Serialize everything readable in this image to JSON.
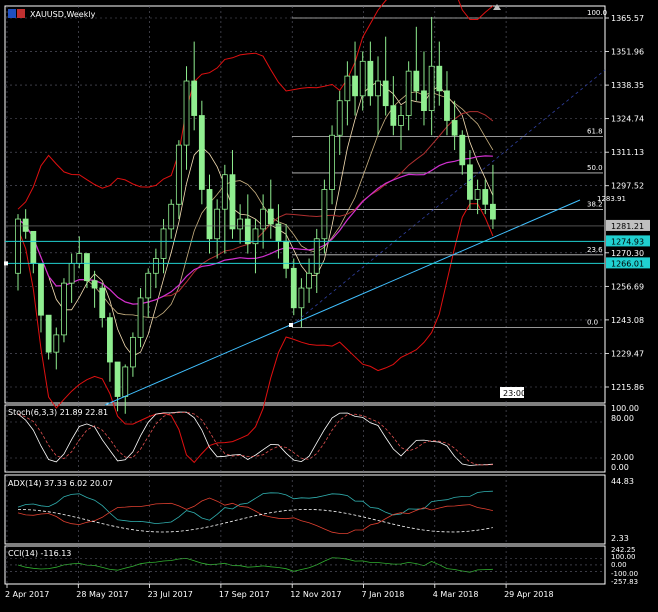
{
  "window": {
    "title": "XAUUSD,Weekly",
    "icon_name": "chart-window-icon"
  },
  "colors": {
    "background": "#000000",
    "text": "#ffffff",
    "grid": "#606070",
    "bull": "#90ee90",
    "bear": "#90ee90",
    "ma_fast": "#f5deb3",
    "ma_slow": "#b03030",
    "ma_magenta": "#d030d0",
    "bollinger": "#e01010",
    "fib": "#c8c8c8",
    "trend": "#40c0ff",
    "stoch_main": "#ffffff",
    "stoch_signal": "#e05050",
    "adx_main": "#ffffff",
    "adx_plus": "#30b0b0",
    "adx_minus": "#e04030",
    "cci": "#30b030",
    "hline_cyan": "#20d0d0"
  },
  "main": {
    "price_axis": [
      "1365.57",
      "1351.96",
      "1338.35",
      "1324.74",
      "1311.13",
      "1297.52",
      "1270.30",
      "1256.69",
      "1243.08",
      "1229.47",
      "1215.86"
    ],
    "price_tags": [
      {
        "label": "1281.21",
        "kind": "bid"
      },
      {
        "label": "1274.93",
        "kind": "line"
      },
      {
        "label": "1266.01",
        "kind": "line"
      }
    ],
    "partial_label": "1283.91",
    "fib_levels": [
      {
        "label": "100.0",
        "price": 1365.57
      },
      {
        "label": "61.8",
        "price": 1317.5
      },
      {
        "label": "50.0",
        "price": 1302.7
      },
      {
        "label": "38.2",
        "price": 1287.9
      },
      {
        "label": "23.6",
        "price": 1269.5
      },
      {
        "label": "0.0",
        "price": 1240.0
      }
    ],
    "time_label": "23:00"
  },
  "indicators": {
    "stoch": {
      "header": "Stoch(6,3,3) 21.89 22.81",
      "axis": [
        "100.00",
        "80.00",
        "20.00",
        "0.00"
      ]
    },
    "adx": {
      "header": "ADX(14) 37.33 6.02 20.07",
      "axis": [
        "44.83",
        "2.33"
      ]
    },
    "cci": {
      "header": "CCI(14) -116.13",
      "axis": [
        "242.25",
        "100.00",
        "0.00",
        "-100.00",
        "-257.83"
      ]
    }
  },
  "time_axis": [
    "2 Apr 2017",
    "28 May 2017",
    "23 Jul 2017",
    "17 Sep 2017",
    "12 Nov 2017",
    "7 Jan 2018",
    "4 Mar 2018",
    "29 Apr 2018"
  ],
  "chart_data": {
    "type": "candlestick",
    "title": "XAUUSD,Weekly",
    "ylim": [
      1205,
      1372
    ],
    "candles": [
      [
        1262,
        1286,
        1255,
        1284
      ],
      [
        1284,
        1288,
        1276,
        1279
      ],
      [
        1279,
        1279,
        1262,
        1266
      ],
      [
        1266,
        1266,
        1238,
        1245
      ],
      [
        1245,
        1245,
        1227,
        1230
      ],
      [
        1230,
        1240,
        1223,
        1237
      ],
      [
        1237,
        1260,
        1234,
        1258
      ],
      [
        1258,
        1270,
        1250,
        1266
      ],
      [
        1266,
        1277,
        1264,
        1270
      ],
      [
        1270,
        1270,
        1256,
        1259
      ],
      [
        1259,
        1263,
        1248,
        1256
      ],
      [
        1256,
        1258,
        1240,
        1244
      ],
      [
        1244,
        1246,
        1218,
        1226
      ],
      [
        1226,
        1226,
        1206,
        1212
      ],
      [
        1212,
        1225,
        1205,
        1224
      ],
      [
        1224,
        1238,
        1220,
        1236
      ],
      [
        1236,
        1256,
        1232,
        1252
      ],
      [
        1252,
        1264,
        1244,
        1262
      ],
      [
        1262,
        1272,
        1256,
        1268
      ],
      [
        1268,
        1284,
        1262,
        1280
      ],
      [
        1280,
        1292,
        1276,
        1290
      ],
      [
        1290,
        1316,
        1284,
        1314
      ],
      [
        1314,
        1346,
        1304,
        1340
      ],
      [
        1340,
        1356,
        1320,
        1326
      ],
      [
        1326,
        1332,
        1290,
        1296
      ],
      [
        1296,
        1302,
        1270,
        1276
      ],
      [
        1276,
        1292,
        1268,
        1288
      ],
      [
        1288,
        1306,
        1270,
        1302
      ],
      [
        1302,
        1312,
        1276,
        1280
      ],
      [
        1280,
        1290,
        1274,
        1284
      ],
      [
        1284,
        1294,
        1270,
        1274
      ],
      [
        1274,
        1284,
        1262,
        1280
      ],
      [
        1280,
        1294,
        1272,
        1288
      ],
      [
        1288,
        1300,
        1276,
        1282
      ],
      [
        1282,
        1290,
        1268,
        1275
      ],
      [
        1275,
        1282,
        1260,
        1264
      ],
      [
        1264,
        1268,
        1245,
        1248
      ],
      [
        1248,
        1260,
        1240,
        1256
      ],
      [
        1256,
        1268,
        1250,
        1262
      ],
      [
        1262,
        1280,
        1254,
        1276
      ],
      [
        1276,
        1300,
        1270,
        1296
      ],
      [
        1296,
        1322,
        1290,
        1318
      ],
      [
        1318,
        1336,
        1310,
        1332
      ],
      [
        1332,
        1348,
        1322,
        1342
      ],
      [
        1342,
        1356,
        1326,
        1334
      ],
      [
        1334,
        1352,
        1328,
        1348
      ],
      [
        1348,
        1356,
        1330,
        1334
      ],
      [
        1334,
        1350,
        1318,
        1340
      ],
      [
        1340,
        1358,
        1326,
        1330
      ],
      [
        1330,
        1342,
        1318,
        1322
      ],
      [
        1322,
        1330,
        1312,
        1326
      ],
      [
        1326,
        1348,
        1320,
        1344
      ],
      [
        1344,
        1362,
        1332,
        1336
      ],
      [
        1336,
        1352,
        1322,
        1328
      ],
      [
        1328,
        1366,
        1318,
        1346
      ],
      [
        1346,
        1356,
        1330,
        1336
      ],
      [
        1336,
        1344,
        1318,
        1324
      ],
      [
        1324,
        1332,
        1312,
        1318
      ],
      [
        1318,
        1320,
        1302,
        1306
      ],
      [
        1306,
        1312,
        1288,
        1292
      ],
      [
        1292,
        1300,
        1286,
        1296
      ],
      [
        1296,
        1300,
        1286,
        1290
      ],
      [
        1290,
        1306,
        1280,
        1284
      ]
    ]
  }
}
